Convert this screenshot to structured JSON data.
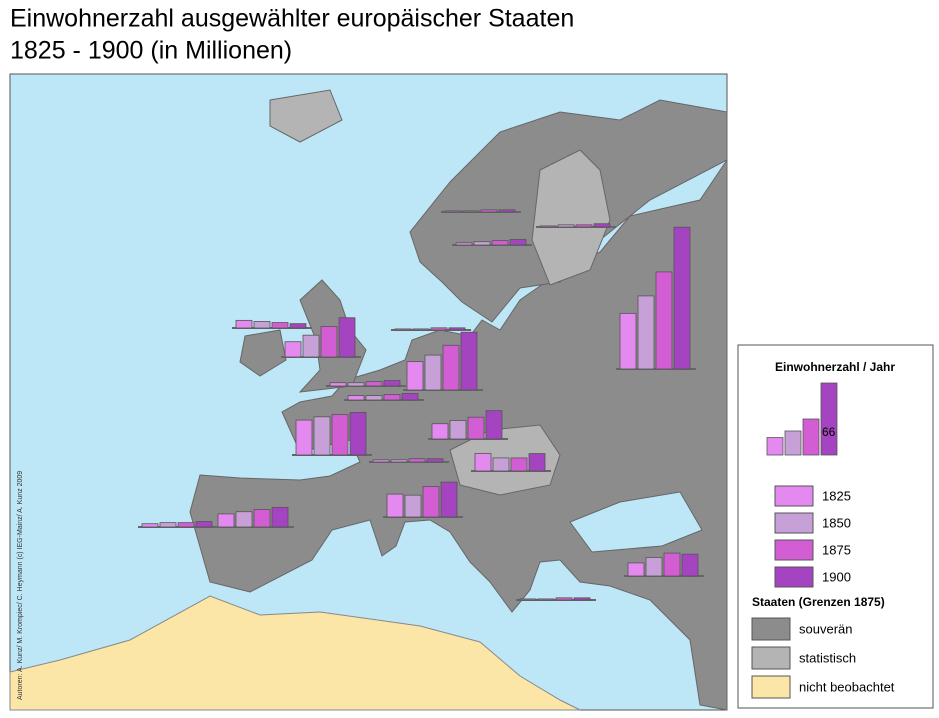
{
  "title": "Einwohnerzahl ausgewählter europäischer Staaten",
  "subtitle": "1825 - 1900 (in Millionen)",
  "credit": "Autoren: A. Kunz/ M. Krompiec/ C. Heymann (c) IEG-Mainz/ A. Kunz 2009",
  "chart_data": {
    "type": "bar",
    "series": [
      {
        "name": "1825",
        "color": "#e389f0"
      },
      {
        "name": "1850",
        "color": "#c8a0d8"
      },
      {
        "name": "1875",
        "color": "#d35ed3"
      },
      {
        "name": "1900",
        "color": "#a544c0"
      }
    ],
    "groups": [
      {
        "values": [
          51,
          67,
          89,
          130
        ]
      },
      {
        "values": [
          14,
          20,
          28,
          36
        ]
      },
      {
        "values": [
          7,
          6,
          5,
          4
        ]
      },
      {
        "values": [
          26,
          32,
          41,
          53
        ]
      },
      {
        "values": [
          32,
          35,
          37,
          39
        ]
      },
      {
        "values": [
          3,
          3,
          4,
          5
        ]
      },
      {
        "values": [
          4,
          4,
          5,
          6
        ]
      },
      {
        "values": [
          14,
          17,
          20,
          26
        ]
      },
      {
        "values": [
          16,
          12,
          12,
          16
        ]
      },
      {
        "values": [
          21,
          20,
          28,
          32
        ]
      },
      {
        "values": [
          12,
          14,
          16,
          18
        ]
      },
      {
        "values": [
          3,
          4,
          4,
          5
        ]
      },
      {
        "values": [
          2,
          3,
          4,
          5
        ]
      },
      {
        "values": [
          1,
          1,
          2,
          2
        ]
      },
      {
        "values": [
          1,
          2,
          2,
          3
        ]
      },
      {
        "values": [
          1,
          1,
          2,
          2
        ]
      },
      {
        "values": [
          12,
          17,
          21,
          20
        ]
      },
      {
        "values": [
          1,
          1,
          2,
          2
        ]
      },
      {
        "values": [
          2,
          2,
          3,
          3
        ]
      }
    ]
  },
  "legend": {
    "title": "Einwohnerzahl / Jahr",
    "example": [
      16,
      22,
      33,
      66
    ],
    "states_title": "Staaten (Grenzen 1875)",
    "states": [
      {
        "label": "souverän",
        "color": "#8c8c8c"
      },
      {
        "label": "statistisch",
        "color": "#b4b4b4"
      },
      {
        "label": "nicht beobachtet",
        "color": "#fbe6a8"
      }
    ]
  }
}
